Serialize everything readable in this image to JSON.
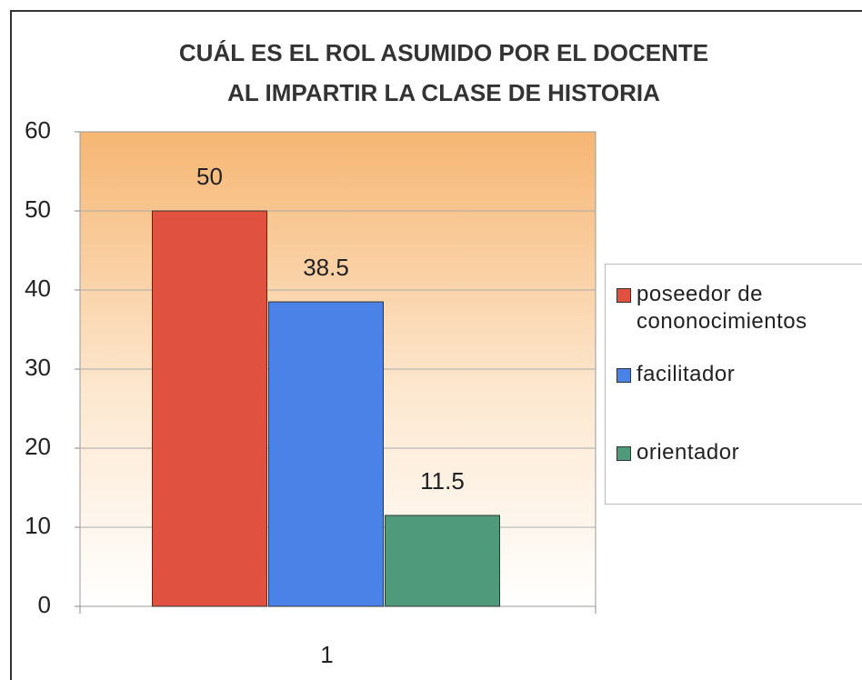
{
  "chart_data": {
    "type": "bar",
    "title": [
      "CUÁL ES EL ROL ASUMIDO POR EL DOCENTE",
      "AL IMPARTIR LA CLASE DE HISTORIA"
    ],
    "categories": [
      "1"
    ],
    "series": [
      {
        "name": "poseedor de cononocimientos",
        "color": "#e0513f",
        "values": [
          50
        ]
      },
      {
        "name": "facilitador",
        "color": "#4a82e8",
        "values": [
          38.5
        ]
      },
      {
        "name": "orientador",
        "color": "#4f9a7a",
        "values": [
          11.5
        ]
      }
    ],
    "ylim": [
      0,
      60
    ],
    "yticks": [
      0,
      10,
      20,
      30,
      40,
      50,
      60
    ],
    "grid": true,
    "legend": "right"
  }
}
